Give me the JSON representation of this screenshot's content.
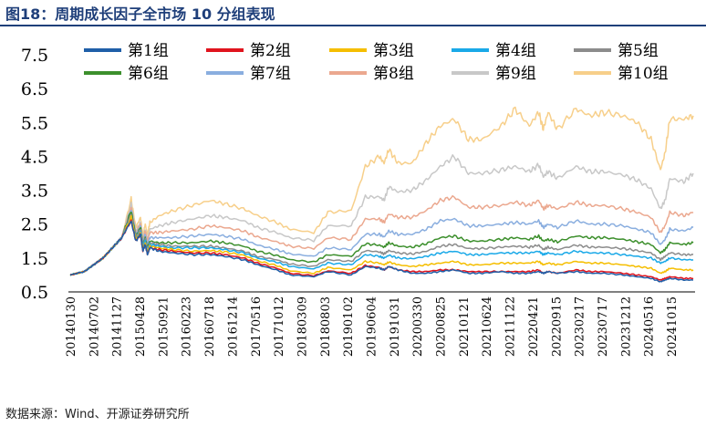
{
  "title": "图18：周期成长因子全市场 10 分组表现",
  "source": "数据来源：Wind、开源证券研究所",
  "chart_data": {
    "type": "line",
    "title": "图18：周期成长因子全市场 10 分组表现",
    "xlabel": "",
    "ylabel": "",
    "ylim": [
      0.5,
      7.5
    ],
    "yticks": [
      "7.5",
      "6.5",
      "5.5",
      "4.5",
      "3.5",
      "2.5",
      "1.5",
      "0.5"
    ],
    "ytick_values": [
      7.5,
      6.5,
      5.5,
      4.5,
      3.5,
      2.5,
      1.5,
      0.5
    ],
    "xticks": [
      "20140130",
      "20140702",
      "20141127",
      "20150428",
      "20150921",
      "20160223",
      "20160718",
      "20161214",
      "20170516",
      "20171012",
      "20180309",
      "20180803",
      "20190102",
      "20190604",
      "20191031",
      "20200330",
      "20200825",
      "20210121",
      "20210624",
      "20211122",
      "20220421",
      "20220915",
      "20230217",
      "20230717",
      "20231212",
      "20240516",
      "20241015"
    ],
    "legend_position": "top",
    "t": [
      0,
      3,
      5,
      7,
      9,
      11,
      13,
      14,
      15,
      15.5,
      16,
      16.5,
      17,
      19,
      22,
      26,
      30,
      33,
      37,
      40,
      44,
      47,
      52,
      55,
      60,
      63,
      66,
      67,
      68,
      70,
      73,
      76,
      79,
      82,
      85,
      88,
      92,
      95,
      98,
      100,
      101,
      102,
      104,
      108,
      111,
      114,
      118,
      121,
      124,
      126,
      127,
      128,
      131,
      133
    ],
    "series": [
      {
        "name": "第1组",
        "color": "#1f5fa8",
        "values": [
          1.0,
          1.1,
          1.3,
          1.5,
          1.8,
          2.1,
          2.6,
          2.0,
          2.2,
          1.7,
          1.9,
          1.6,
          1.8,
          1.7,
          1.65,
          1.6,
          1.6,
          1.55,
          1.45,
          1.3,
          1.15,
          1.0,
          0.95,
          1.1,
          1.0,
          1.25,
          1.2,
          1.15,
          1.25,
          1.15,
          1.05,
          1.05,
          1.1,
          1.15,
          1.05,
          1.05,
          1.1,
          1.05,
          1.05,
          1.1,
          1.05,
          1.1,
          1.05,
          1.1,
          1.05,
          1.05,
          1.0,
          0.95,
          0.9,
          0.8,
          0.85,
          0.9,
          0.85,
          0.85
        ]
      },
      {
        "name": "第2组",
        "color": "#e0141e",
        "values": [
          1.0,
          1.1,
          1.3,
          1.5,
          1.8,
          2.1,
          2.6,
          2.0,
          2.2,
          1.7,
          1.9,
          1.6,
          1.8,
          1.75,
          1.7,
          1.65,
          1.65,
          1.6,
          1.5,
          1.35,
          1.2,
          1.05,
          0.98,
          1.12,
          1.05,
          1.28,
          1.22,
          1.15,
          1.25,
          1.15,
          1.1,
          1.1,
          1.15,
          1.15,
          1.1,
          1.1,
          1.1,
          1.1,
          1.1,
          1.15,
          1.05,
          1.1,
          1.05,
          1.15,
          1.1,
          1.1,
          1.05,
          1.0,
          0.95,
          0.85,
          0.9,
          0.95,
          0.9,
          0.9
        ]
      },
      {
        "name": "第3组",
        "color": "#f5be00",
        "values": [
          1.0,
          1.1,
          1.3,
          1.5,
          1.8,
          2.1,
          2.7,
          2.05,
          2.25,
          1.75,
          1.95,
          1.65,
          1.85,
          1.8,
          1.75,
          1.7,
          1.72,
          1.68,
          1.58,
          1.42,
          1.28,
          1.12,
          1.05,
          1.22,
          1.15,
          1.4,
          1.35,
          1.3,
          1.38,
          1.3,
          1.25,
          1.3,
          1.35,
          1.4,
          1.3,
          1.3,
          1.35,
          1.35,
          1.35,
          1.4,
          1.3,
          1.35,
          1.3,
          1.4,
          1.35,
          1.35,
          1.3,
          1.25,
          1.2,
          1.05,
          1.1,
          1.2,
          1.15,
          1.15
        ]
      },
      {
        "name": "第4组",
        "color": "#1aa9e8",
        "values": [
          1.0,
          1.1,
          1.3,
          1.5,
          1.8,
          2.1,
          2.7,
          2.05,
          2.3,
          1.8,
          2.0,
          1.7,
          1.9,
          1.85,
          1.8,
          1.8,
          1.8,
          1.75,
          1.65,
          1.5,
          1.38,
          1.25,
          1.18,
          1.35,
          1.3,
          1.6,
          1.55,
          1.5,
          1.58,
          1.5,
          1.48,
          1.55,
          1.65,
          1.7,
          1.6,
          1.6,
          1.65,
          1.65,
          1.65,
          1.7,
          1.6,
          1.65,
          1.6,
          1.7,
          1.65,
          1.65,
          1.6,
          1.55,
          1.5,
          1.35,
          1.4,
          1.5,
          1.45,
          1.45
        ]
      },
      {
        "name": "第5组",
        "color": "#8c8c8c",
        "values": [
          1.0,
          1.1,
          1.3,
          1.5,
          1.8,
          2.1,
          2.8,
          2.1,
          2.35,
          1.85,
          2.05,
          1.75,
          1.95,
          1.9,
          1.85,
          1.85,
          1.85,
          1.8,
          1.7,
          1.55,
          1.45,
          1.32,
          1.25,
          1.45,
          1.4,
          1.72,
          1.68,
          1.62,
          1.72,
          1.65,
          1.62,
          1.7,
          1.85,
          1.9,
          1.78,
          1.78,
          1.82,
          1.85,
          1.82,
          1.88,
          1.75,
          1.82,
          1.75,
          1.88,
          1.82,
          1.82,
          1.78,
          1.72,
          1.65,
          1.45,
          1.55,
          1.65,
          1.6,
          1.6
        ]
      },
      {
        "name": "第6组",
        "color": "#3c8f2c",
        "values": [
          1.0,
          1.1,
          1.3,
          1.5,
          1.8,
          2.1,
          2.9,
          2.15,
          2.4,
          1.9,
          2.1,
          1.8,
          2.0,
          1.95,
          1.95,
          1.95,
          2.0,
          1.95,
          1.85,
          1.7,
          1.58,
          1.45,
          1.38,
          1.6,
          1.55,
          1.92,
          1.88,
          1.82,
          1.95,
          1.85,
          1.82,
          1.92,
          2.1,
          2.15,
          2.0,
          2.0,
          2.05,
          2.1,
          2.05,
          2.15,
          2.0,
          2.05,
          1.98,
          2.15,
          2.1,
          2.1,
          2.05,
          1.98,
          1.9,
          1.65,
          1.75,
          1.95,
          1.9,
          1.95
        ]
      },
      {
        "name": "第7组",
        "color": "#8aaedf",
        "values": [
          1.0,
          1.1,
          1.3,
          1.5,
          1.8,
          2.1,
          2.95,
          2.2,
          2.45,
          1.95,
          2.2,
          1.9,
          2.1,
          2.1,
          2.1,
          2.15,
          2.2,
          2.15,
          2.05,
          1.88,
          1.75,
          1.62,
          1.55,
          1.8,
          1.75,
          2.2,
          2.2,
          2.12,
          2.3,
          2.2,
          2.2,
          2.35,
          2.6,
          2.65,
          2.45,
          2.45,
          2.5,
          2.55,
          2.5,
          2.6,
          2.4,
          2.5,
          2.4,
          2.6,
          2.5,
          2.5,
          2.45,
          2.35,
          2.25,
          1.9,
          2.05,
          2.35,
          2.3,
          2.4
        ]
      },
      {
        "name": "第8组",
        "color": "#eba88f",
        "values": [
          1.0,
          1.1,
          1.3,
          1.5,
          1.8,
          2.1,
          3.0,
          2.25,
          2.5,
          2.0,
          2.3,
          2.0,
          2.25,
          2.25,
          2.3,
          2.35,
          2.45,
          2.4,
          2.3,
          2.12,
          1.98,
          1.85,
          1.78,
          2.1,
          2.05,
          2.65,
          2.65,
          2.55,
          2.8,
          2.7,
          2.7,
          2.9,
          3.2,
          3.3,
          3.0,
          3.0,
          3.05,
          3.15,
          3.05,
          3.2,
          2.95,
          3.05,
          2.95,
          3.15,
          3.05,
          3.05,
          2.95,
          2.85,
          2.7,
          2.25,
          2.45,
          2.85,
          2.75,
          2.85
        ]
      },
      {
        "name": "第9组",
        "color": "#c8c8c8",
        "values": [
          1.0,
          1.1,
          1.3,
          1.5,
          1.8,
          2.1,
          3.1,
          2.3,
          2.55,
          2.05,
          2.35,
          2.05,
          2.35,
          2.45,
          2.55,
          2.65,
          2.75,
          2.7,
          2.6,
          2.4,
          2.25,
          2.1,
          2.02,
          2.45,
          2.45,
          3.3,
          3.3,
          3.2,
          3.6,
          3.45,
          3.5,
          3.8,
          4.2,
          4.5,
          4.0,
          4.0,
          4.1,
          4.2,
          4.05,
          4.25,
          3.9,
          4.05,
          3.85,
          4.2,
          4.05,
          4.05,
          3.95,
          3.8,
          3.55,
          2.95,
          3.2,
          3.85,
          3.75,
          4.0
        ]
      },
      {
        "name": "第10组",
        "color": "#f7cf8a",
        "values": [
          1.0,
          1.1,
          1.3,
          1.5,
          1.8,
          2.1,
          3.25,
          2.4,
          2.7,
          2.15,
          2.5,
          2.2,
          2.55,
          2.75,
          2.9,
          3.05,
          3.2,
          3.1,
          2.95,
          2.75,
          2.55,
          2.35,
          2.25,
          2.85,
          2.9,
          4.2,
          4.5,
          4.3,
          4.7,
          4.3,
          4.3,
          4.9,
          5.4,
          5.6,
          5.0,
          5.0,
          5.4,
          5.9,
          5.4,
          5.8,
          5.3,
          5.8,
          5.3,
          5.9,
          5.7,
          5.8,
          5.7,
          5.5,
          5.0,
          4.1,
          4.6,
          5.6,
          5.6,
          5.7
        ]
      }
    ]
  }
}
